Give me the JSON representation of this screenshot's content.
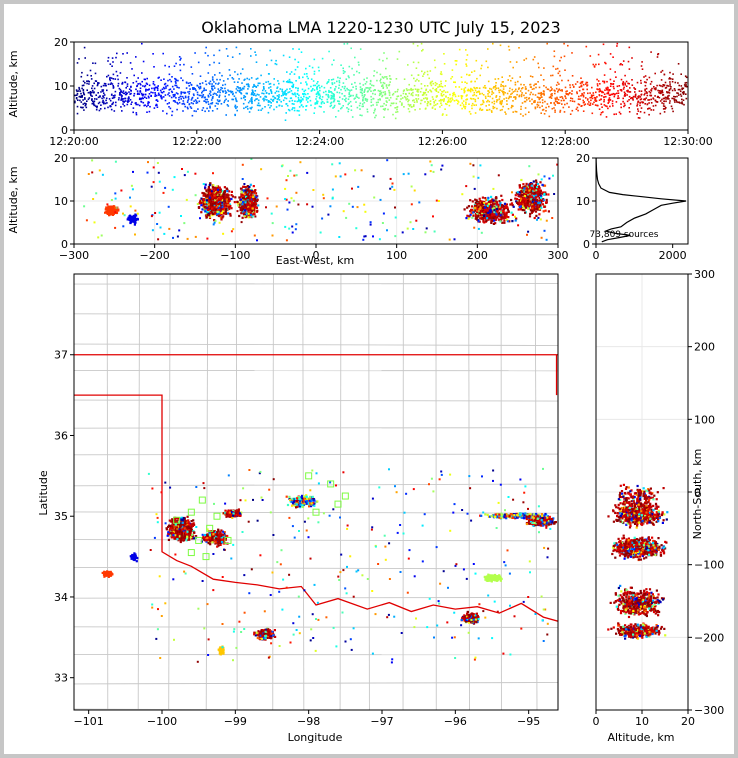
{
  "title": "Oklahoma LMA 1220-1230 UTC July 15, 2023",
  "chart_data": [
    {
      "panel": "time-height",
      "type": "scatter",
      "ylabel": "Altitude, km",
      "xlim_minutes": [
        0,
        10
      ],
      "ylim": [
        0,
        20
      ],
      "x_ticks": [
        "12:20:00",
        "12:22:00",
        "12:24:00",
        "12:26:00",
        "12:28:00",
        "12:30:00"
      ],
      "y_ticks": [
        "0",
        "10",
        "20"
      ],
      "color_by": "time (jet colormap)"
    },
    {
      "panel": "east-west-height",
      "type": "scatter",
      "xlabel": "East-West, km",
      "ylabel": "Altitude, km",
      "xlim": [
        -300,
        300
      ],
      "ylim": [
        0,
        20
      ],
      "x_ticks": [
        "−300",
        "−200",
        "−100",
        "0",
        "100",
        "200",
        "300"
      ],
      "y_ticks": [
        "0",
        "10",
        "20"
      ],
      "clusters_km": [
        [
          -250,
          8
        ],
        [
          -225,
          6
        ],
        [
          -130,
          10
        ],
        [
          -85,
          10
        ],
        [
          215,
          10
        ],
        [
          270,
          12
        ]
      ]
    },
    {
      "panel": "altitude-histogram",
      "type": "line",
      "xlim": [
        0,
        2400
      ],
      "ylim": [
        0,
        20
      ],
      "x_ticks": [
        "0",
        "2000"
      ],
      "y_ticks": [
        "0",
        "10",
        "20"
      ],
      "annotation": "73,809 sources",
      "profile": {
        "altitude_km": [
          0.5,
          1,
          1.5,
          2,
          2.5,
          3,
          3.5,
          4,
          5,
          6,
          7,
          8,
          9,
          9.5,
          10,
          10.5,
          11,
          11.5,
          12,
          13,
          14,
          15,
          16,
          17,
          18,
          19,
          20
        ],
        "count": [
          150,
          300,
          600,
          900,
          500,
          250,
          400,
          650,
          800,
          1000,
          1300,
          1500,
          1700,
          2000,
          2350,
          1700,
          1200,
          700,
          350,
          130,
          70,
          40,
          25,
          15,
          10,
          6,
          3
        ]
      }
    },
    {
      "panel": "plan-view",
      "type": "scatter",
      "xlabel": "Longitude",
      "ylabel": "Latitude",
      "xlim": [
        -101.2,
        -94.6
      ],
      "ylim": [
        32.6,
        38.0
      ],
      "x_ticks": [
        "−101",
        "−100",
        "−99",
        "−98",
        "−97",
        "−96",
        "−95"
      ],
      "y_ticks": [
        "33",
        "34",
        "35",
        "36",
        "37"
      ],
      "station_markers": [
        [
          -98.0,
          35.5
        ],
        [
          -97.7,
          35.4
        ],
        [
          -97.5,
          35.25
        ],
        [
          -97.6,
          35.15
        ],
        [
          -97.9,
          35.05
        ],
        [
          -99.8,
          34.95
        ],
        [
          -99.6,
          35.05
        ],
        [
          -99.45,
          35.2
        ],
        [
          -99.35,
          34.85
        ],
        [
          -99.1,
          34.7
        ],
        [
          -99.5,
          34.7
        ],
        [
          -99.25,
          35.0
        ],
        [
          -99.6,
          34.55
        ],
        [
          -99.4,
          34.5
        ]
      ]
    },
    {
      "panel": "north-south-height",
      "type": "scatter",
      "xlabel": "Altitude, km",
      "ylabel": "North-South, km",
      "xlim": [
        0,
        20
      ],
      "ylim": [
        -300,
        300
      ],
      "x_ticks": [
        "0",
        "10",
        "20"
      ],
      "y_ticks": [
        "−300",
        "−200",
        "−100",
        "0",
        "100",
        "200",
        "300"
      ]
    }
  ],
  "colors": {
    "boundary_red": "#e00000",
    "county_lines": "#c8c8c8",
    "station_marker": "#7cfc40"
  }
}
